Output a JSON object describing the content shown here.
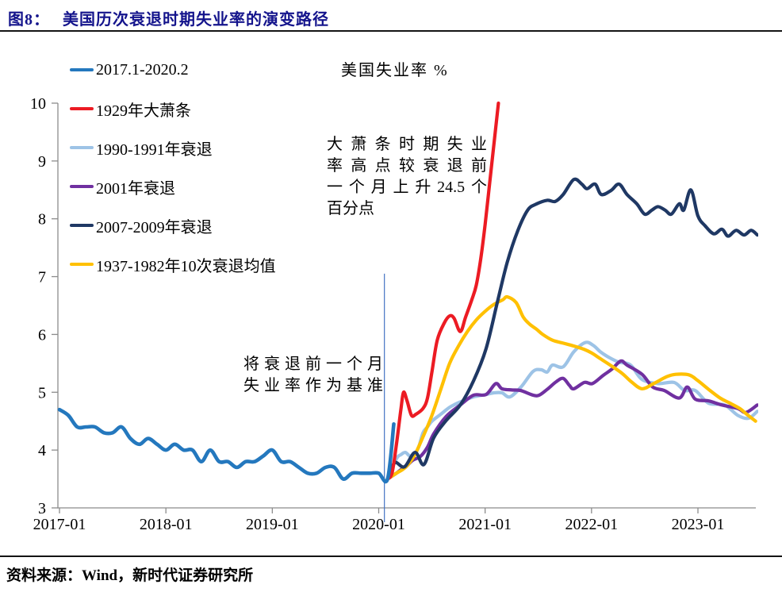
{
  "header": {
    "figure_label": "图8：",
    "figure_title": "美国历次衰退时期失业率的演变路径"
  },
  "footer": {
    "prefix": "资料来源：",
    "text": "Wind，新时代证券研究所"
  },
  "colors": {
    "title_blue": "#14148C",
    "axis": "#8C8C8C",
    "ref_line": "#4472C4",
    "blue": "#2478BE",
    "red": "#EC1B23",
    "light_blue": "#9DC3E6",
    "purple": "#7030A0",
    "navy": "#1F3864",
    "yellow": "#FFC000"
  },
  "chart_data": {
    "type": "line",
    "title": "美国失业率 %",
    "x_axis": {
      "unit": "months_since_2017_01",
      "tick_months": [
        0,
        12,
        24,
        36,
        48,
        60,
        72
      ],
      "tick_labels": [
        "2017-01",
        "2018-01",
        "2019-01",
        "2020-01",
        "2021-01",
        "2022-01",
        "2023-01"
      ]
    },
    "y_axis": {
      "min": 3,
      "max": 10,
      "ticks": [
        10,
        9,
        8,
        7,
        6,
        5,
        4,
        3
      ]
    },
    "baseline_ref": {
      "month": 37,
      "top_value": 7.05
    },
    "annotations": [
      {
        "id": "depression-note",
        "lines": [
          "大萧条时期失业",
          "率高点较衰退前",
          "一个月上升24.5个",
          "百分点"
        ]
      },
      {
        "id": "baseline-note",
        "lines": [
          "将衰退前一个月",
          "失业率作为基准"
        ]
      }
    ],
    "series": [
      {
        "name": "2017.1-2020.2",
        "color": "#2478BE",
        "width": 4.6,
        "points": [
          [
            0,
            4.7
          ],
          [
            1,
            4.6
          ],
          [
            2,
            4.4
          ],
          [
            3,
            4.4
          ],
          [
            4,
            4.4
          ],
          [
            5,
            4.3
          ],
          [
            6,
            4.3
          ],
          [
            7,
            4.4
          ],
          [
            8,
            4.2
          ],
          [
            9,
            4.1
          ],
          [
            10,
            4.2
          ],
          [
            11,
            4.1
          ],
          [
            12,
            4.0
          ],
          [
            13,
            4.1
          ],
          [
            14,
            4.0
          ],
          [
            15,
            4.0
          ],
          [
            16,
            3.8
          ],
          [
            17,
            4.0
          ],
          [
            18,
            3.8
          ],
          [
            19,
            3.8
          ],
          [
            20,
            3.7
          ],
          [
            21,
            3.8
          ],
          [
            22,
            3.8
          ],
          [
            23,
            3.9
          ],
          [
            24,
            4.0
          ],
          [
            25,
            3.8
          ],
          [
            26,
            3.8
          ],
          [
            27,
            3.7
          ],
          [
            28,
            3.6
          ],
          [
            29,
            3.6
          ],
          [
            30,
            3.7
          ],
          [
            31,
            3.7
          ],
          [
            32,
            3.5
          ],
          [
            33,
            3.6
          ],
          [
            34,
            3.6
          ],
          [
            35,
            3.6
          ],
          [
            36,
            3.6
          ],
          [
            37,
            3.5
          ],
          [
            37.7,
            4.45
          ]
        ]
      },
      {
        "name": "1929年大萧条",
        "color": "#EC1B23",
        "width": 4.2,
        "points": [
          [
            37,
            3.5
          ],
          [
            37.5,
            3.6
          ],
          [
            38,
            4.1
          ],
          [
            38.5,
            4.7
          ],
          [
            38.8,
            5.0
          ],
          [
            39.2,
            4.85
          ],
          [
            39.7,
            4.6
          ],
          [
            40.2,
            4.62
          ],
          [
            41,
            4.72
          ],
          [
            41.5,
            4.9
          ],
          [
            42,
            5.35
          ],
          [
            42.6,
            5.9
          ],
          [
            43.4,
            6.2
          ],
          [
            44,
            6.32
          ],
          [
            44.5,
            6.28
          ],
          [
            45.2,
            6.05
          ],
          [
            45.8,
            6.3
          ],
          [
            46.5,
            6.6
          ],
          [
            47,
            6.85
          ],
          [
            47.5,
            7.3
          ],
          [
            48,
            7.9
          ],
          [
            48.5,
            8.6
          ],
          [
            49,
            9.3
          ],
          [
            49.5,
            10.0
          ]
        ]
      },
      {
        "name": "1990-1991年衰退",
        "color": "#9DC3E6",
        "width": 4.2,
        "points": [
          [
            37,
            3.5
          ],
          [
            38,
            3.85
          ],
          [
            38.5,
            3.92
          ],
          [
            39,
            3.96
          ],
          [
            39.5,
            3.9
          ],
          [
            40,
            3.92
          ],
          [
            40.5,
            4.05
          ],
          [
            41,
            4.3
          ],
          [
            41.5,
            4.4
          ],
          [
            42,
            4.5
          ],
          [
            43,
            4.62
          ],
          [
            44,
            4.74
          ],
          [
            45,
            4.82
          ],
          [
            45.5,
            4.85
          ],
          [
            46.7,
            4.92
          ],
          [
            48.1,
            4.96
          ],
          [
            49,
            4.99
          ],
          [
            49.9,
            4.99
          ],
          [
            50.8,
            4.92
          ],
          [
            52.1,
            5.1
          ],
          [
            53.4,
            5.36
          ],
          [
            54.3,
            5.39
          ],
          [
            55,
            5.35
          ],
          [
            55.6,
            5.47
          ],
          [
            56.8,
            5.44
          ],
          [
            58,
            5.7
          ],
          [
            59.3,
            5.86
          ],
          [
            60.2,
            5.81
          ],
          [
            61,
            5.7
          ],
          [
            62,
            5.6
          ],
          [
            63.1,
            5.52
          ],
          [
            64,
            5.5
          ],
          [
            64.6,
            5.44
          ],
          [
            65.7,
            5.22
          ],
          [
            67.5,
            5.15
          ],
          [
            69.3,
            5.17
          ],
          [
            70.5,
            5.03
          ],
          [
            71.7,
            5.03
          ],
          [
            73.2,
            4.81
          ],
          [
            75,
            4.78
          ],
          [
            76.5,
            4.6
          ],
          [
            77.7,
            4.55
          ],
          [
            78.7,
            4.67
          ]
        ]
      },
      {
        "name": "2001年衰退",
        "color": "#7030A0",
        "width": 4.2,
        "points": [
          [
            37,
            3.5
          ],
          [
            38,
            3.6
          ],
          [
            38.5,
            3.66
          ],
          [
            39,
            3.7
          ],
          [
            39.8,
            3.82
          ],
          [
            40.7,
            3.89
          ],
          [
            41.5,
            4.05
          ],
          [
            42.2,
            4.28
          ],
          [
            43.6,
            4.58
          ],
          [
            45.2,
            4.78
          ],
          [
            46.7,
            4.95
          ],
          [
            48.1,
            4.96
          ],
          [
            49.2,
            5.15
          ],
          [
            49.9,
            5.06
          ],
          [
            51,
            5.04
          ],
          [
            52,
            5.03
          ],
          [
            53.4,
            4.95
          ],
          [
            54.1,
            4.95
          ],
          [
            55,
            5.05
          ],
          [
            56,
            5.18
          ],
          [
            56.8,
            5.24
          ],
          [
            57.5,
            5.12
          ],
          [
            58,
            5.06
          ],
          [
            59.2,
            5.17
          ],
          [
            60.1,
            5.15
          ],
          [
            61.3,
            5.29
          ],
          [
            62.3,
            5.4
          ],
          [
            63.3,
            5.54
          ],
          [
            64,
            5.47
          ],
          [
            65.7,
            5.31
          ],
          [
            66.9,
            5.09
          ],
          [
            68.2,
            5.03
          ],
          [
            69.9,
            4.9
          ],
          [
            70.8,
            5.09
          ],
          [
            71.7,
            4.88
          ],
          [
            73.2,
            4.85
          ],
          [
            74.7,
            4.78
          ],
          [
            76.5,
            4.72
          ],
          [
            77.4,
            4.65
          ],
          [
            78.7,
            4.78
          ]
        ]
      },
      {
        "name": "2007-2009年衰退",
        "color": "#1F3864",
        "width": 4.2,
        "points": [
          [
            37,
            3.5
          ],
          [
            37.8,
            3.78
          ],
          [
            38.9,
            3.71
          ],
          [
            40.1,
            3.96
          ],
          [
            41.1,
            3.75
          ],
          [
            42.2,
            4.21
          ],
          [
            43.6,
            4.51
          ],
          [
            45.2,
            4.78
          ],
          [
            46.7,
            5.2
          ],
          [
            48.1,
            5.75
          ],
          [
            49.4,
            6.57
          ],
          [
            50.5,
            7.25
          ],
          [
            51.7,
            7.8
          ],
          [
            52.8,
            8.15
          ],
          [
            53.7,
            8.25
          ],
          [
            55,
            8.32
          ],
          [
            55.9,
            8.3
          ],
          [
            56.8,
            8.42
          ],
          [
            58,
            8.68
          ],
          [
            58.9,
            8.6
          ],
          [
            59.5,
            8.52
          ],
          [
            60.4,
            8.6
          ],
          [
            61.1,
            8.42
          ],
          [
            62.2,
            8.49
          ],
          [
            63.1,
            8.6
          ],
          [
            64,
            8.42
          ],
          [
            65.1,
            8.26
          ],
          [
            66,
            8.08
          ],
          [
            66.8,
            8.15
          ],
          [
            67.5,
            8.21
          ],
          [
            68.3,
            8.15
          ],
          [
            69,
            8.08
          ],
          [
            69.9,
            8.26
          ],
          [
            70.4,
            8.15
          ],
          [
            71.2,
            8.5
          ],
          [
            72,
            8.05
          ],
          [
            72.8,
            7.88
          ],
          [
            73.8,
            7.74
          ],
          [
            74.7,
            7.82
          ],
          [
            75.4,
            7.7
          ],
          [
            76.3,
            7.8
          ],
          [
            77.2,
            7.72
          ],
          [
            78,
            7.8
          ],
          [
            78.7,
            7.72
          ]
        ]
      },
      {
        "name": "1937-1982年10次衰退均值",
        "color": "#FFC000",
        "width": 4.2,
        "points": [
          [
            37,
            3.5
          ],
          [
            38,
            3.6
          ],
          [
            39,
            3.7
          ],
          [
            40,
            3.9
          ],
          [
            41,
            4.23
          ],
          [
            42,
            4.6
          ],
          [
            43,
            5.05
          ],
          [
            44,
            5.5
          ],
          [
            45,
            5.8
          ],
          [
            46,
            6.05
          ],
          [
            47,
            6.25
          ],
          [
            48,
            6.4
          ],
          [
            49,
            6.52
          ],
          [
            50,
            6.6
          ],
          [
            50.5,
            6.65
          ],
          [
            51.5,
            6.55
          ],
          [
            52.3,
            6.3
          ],
          [
            53,
            6.18
          ],
          [
            53.8,
            6.09
          ],
          [
            54.5,
            6.0
          ],
          [
            55.6,
            5.9
          ],
          [
            56.8,
            5.85
          ],
          [
            58,
            5.8
          ],
          [
            59.2,
            5.74
          ],
          [
            60,
            5.68
          ],
          [
            61,
            5.58
          ],
          [
            62.4,
            5.44
          ],
          [
            63.5,
            5.32
          ],
          [
            64.5,
            5.18
          ],
          [
            65.7,
            5.06
          ],
          [
            67,
            5.15
          ],
          [
            68.5,
            5.27
          ],
          [
            69.5,
            5.31
          ],
          [
            71,
            5.3
          ],
          [
            72,
            5.2
          ],
          [
            73.2,
            5.05
          ],
          [
            74.5,
            4.9
          ],
          [
            75.5,
            4.82
          ],
          [
            76.7,
            4.72
          ],
          [
            77.5,
            4.62
          ],
          [
            78.5,
            4.5
          ]
        ]
      }
    ]
  }
}
